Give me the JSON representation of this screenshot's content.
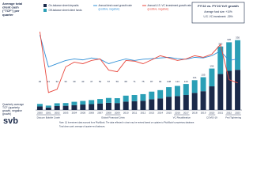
{
  "chart_data": {
    "type": "bar",
    "title": "Average total client cash (\"TCF\") per quarter",
    "categories": [
      "2000",
      "2001",
      "2002",
      "2003",
      "2004",
      "2005",
      "2006",
      "2007",
      "2008",
      "2009",
      "2010",
      "2011",
      "2012",
      "2013",
      "2014",
      "2015",
      "2016",
      "2017",
      "2018",
      "2019",
      "2020",
      "2021",
      "2022",
      "2023"
    ],
    "series": [
      {
        "name": "On-balance sheet deposits",
        "color": "#1b2a4a",
        "values": [
          17,
          12,
          19,
          20,
          23,
          26,
          28,
          31,
          34,
          33,
          40,
          42,
          44,
          51,
          55,
          63,
          66,
          71,
          81,
          89,
          112,
          170,
          185,
          190
        ]
      },
      {
        "name": "Off-balance sheet client funds",
        "color": "#2a9fb6",
        "values": [
          12,
          9,
          13,
          13,
          16,
          17,
          19,
          21,
          23,
          23,
          28,
          29,
          31,
          36,
          39,
          45,
          48,
          52,
          60,
          66,
          84,
          130,
          135,
          140
        ]
      },
      {
        "name": "Annual deal count growth rate",
        "subname": "(positive, negative)",
        "color": "#2f8fd6",
        "type": "line",
        "axis": "y2",
        "values": [
          120,
          20,
          30,
          40,
          45,
          42,
          48,
          44,
          30,
          38,
          45,
          40,
          44,
          46,
          48,
          50,
          46,
          44,
          50,
          48,
          55,
          70,
          40,
          45
        ]
      },
      {
        "name": "Annual U.S. VC investment growth rate",
        "subname": "(positive, negative)",
        "color": "#e8473d",
        "type": "line",
        "axis": "y2",
        "values": [
          130,
          -60,
          -50,
          20,
          35,
          30,
          40,
          45,
          10,
          5,
          40,
          38,
          30,
          42,
          55,
          48,
          40,
          45,
          55,
          50,
          60,
          90,
          -20,
          -30
        ]
      }
    ],
    "totals": [
      29,
      21,
      32,
      33,
      39,
      43,
      47,
      52,
      57,
      56,
      68,
      71,
      75,
      87,
      94,
      108,
      114,
      123,
      141,
      155,
      196,
      300,
      320,
      330
    ],
    "ylim": [
      0,
      400
    ],
    "y2lim": [
      -100,
      150
    ],
    "box": {
      "title": "FY'22 vs. FY'23 YoY growth",
      "lines": [
        "Average fund size: +10%",
        "U.S. VC investment: -30%"
      ]
    },
    "events": [
      "Dotcom Bubble Crash",
      "Global Financial Crisis",
      "VC Recalibration",
      "COVID-19",
      "Fed Tightening"
    ],
    "side_note": "Quarterly average TCF (quarterly growth, negative growth)",
    "logo": "svb",
    "footnotes": [
      "Note: (1) Investment data sourced from PitchBook. The data reflected in chart may be revised based on updates to PitchBook's proprietary database.",
      "Total clean cash; average of quarter-end balances."
    ]
  }
}
